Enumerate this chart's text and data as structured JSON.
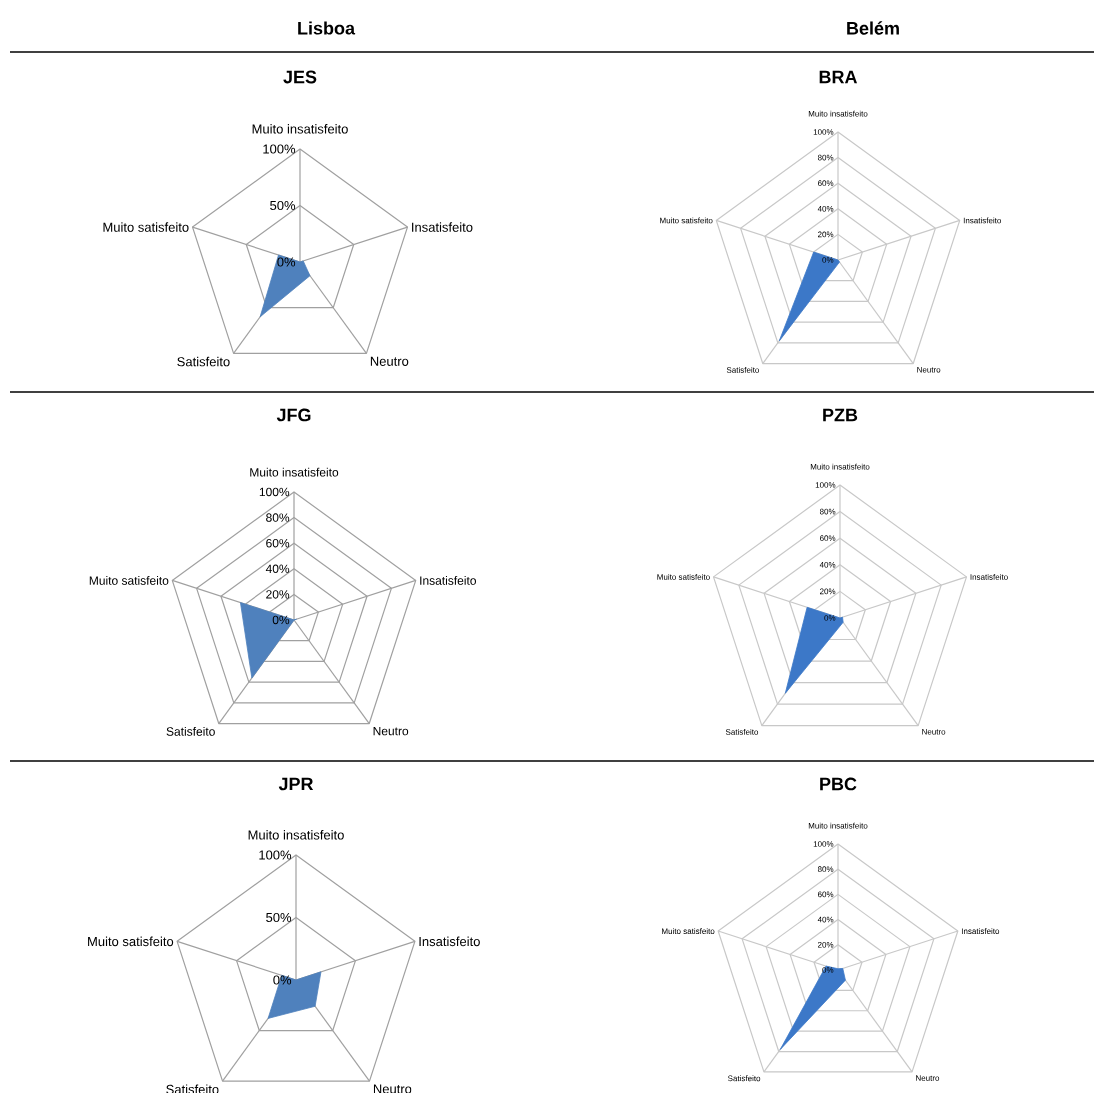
{
  "chart_data": [
    {
      "type": "radar",
      "title": "JES",
      "annotations": [
        "Lisboa"
      ],
      "categories": [
        "Muito insatisfeito",
        "Insatisfeito",
        "Neutro",
        "Satisfeito",
        "Muito satisfeito"
      ],
      "series": [
        {
          "color": "#4f81bd",
          "values": [
            0,
            3,
            15,
            60,
            20
          ]
        }
      ],
      "ylim": [
        0,
        100
      ],
      "yticks": [
        {
          "value": 0,
          "label": "0%"
        },
        {
          "value": 50,
          "label": "50%"
        },
        {
          "value": 100,
          "label": "100%"
        }
      ],
      "grid": true
    },
    {
      "type": "radar",
      "title": "BRA",
      "annotations": [
        "Belém"
      ],
      "categories": [
        "Muito insatisfeito",
        "Insatisfeito",
        "Neutro",
        "Satisfeito",
        "Muito satisfeito"
      ],
      "series": [
        {
          "color": "#3c78c8",
          "values": [
            0,
            0,
            2,
            78,
            20
          ]
        }
      ],
      "ylim": [
        0,
        100
      ],
      "yticks": [
        {
          "value": 0,
          "label": "0%"
        },
        {
          "value": 20,
          "label": "20%"
        },
        {
          "value": 40,
          "label": "40%"
        },
        {
          "value": 60,
          "label": "60%"
        },
        {
          "value": 80,
          "label": "80%"
        },
        {
          "value": 100,
          "label": "100%"
        }
      ],
      "grid": true
    },
    {
      "type": "radar",
      "title": "JFG",
      "categories": [
        "Muito insatisfeito",
        "Insatisfeito",
        "Neutro",
        "Satisfeito",
        "Muito satisfeito"
      ],
      "series": [
        {
          "color": "#4f81bd",
          "values": [
            0,
            2,
            0,
            56,
            44
          ]
        }
      ],
      "ylim": [
        0,
        100
      ],
      "yticks": [
        {
          "value": 0,
          "label": "0%"
        },
        {
          "value": 20,
          "label": "20%"
        },
        {
          "value": 40,
          "label": "40%"
        },
        {
          "value": 60,
          "label": "60%"
        },
        {
          "value": 80,
          "label": "80%"
        },
        {
          "value": 100,
          "label": "100%"
        }
      ],
      "grid": true
    },
    {
      "type": "radar",
      "title": "PZB",
      "categories": [
        "Muito insatisfeito",
        "Insatisfeito",
        "Neutro",
        "Satisfeito",
        "Muito satisfeito"
      ],
      "series": [
        {
          "color": "#3c78c8",
          "values": [
            0,
            2,
            4,
            70,
            26
          ]
        }
      ],
      "ylim": [
        0,
        100
      ],
      "yticks": [
        {
          "value": 0,
          "label": "0%"
        },
        {
          "value": 20,
          "label": "20%"
        },
        {
          "value": 40,
          "label": "40%"
        },
        {
          "value": 60,
          "label": "60%"
        },
        {
          "value": 80,
          "label": "80%"
        },
        {
          "value": 100,
          "label": "100%"
        }
      ],
      "grid": true
    },
    {
      "type": "radar",
      "title": "JPR",
      "categories": [
        "Muito insatisfeito",
        "Insatisfeito",
        "Neutro",
        "Satisfeito",
        "Muito satisfeito"
      ],
      "series": [
        {
          "color": "#4f81bd",
          "values": [
            0,
            21,
            26,
            38,
            12
          ]
        }
      ],
      "ylim": [
        0,
        100
      ],
      "yticks": [
        {
          "value": 0,
          "label": "0%"
        },
        {
          "value": 50,
          "label": "50%"
        },
        {
          "value": 100,
          "label": "100%"
        }
      ],
      "grid": true
    },
    {
      "type": "radar",
      "title": "PBC",
      "categories": [
        "Muito insatisfeito",
        "Insatisfeito",
        "Neutro",
        "Satisfeito",
        "Muito satisfeito"
      ],
      "series": [
        {
          "color": "#3c78c8",
          "values": [
            1,
            4,
            10,
            78,
            10
          ]
        }
      ],
      "ylim": [
        0,
        100
      ],
      "yticks": [
        {
          "value": 0,
          "label": "0%"
        },
        {
          "value": 20,
          "label": "20%"
        },
        {
          "value": 40,
          "label": "40%"
        },
        {
          "value": 60,
          "label": "60%"
        },
        {
          "value": 80,
          "label": "80%"
        },
        {
          "value": 100,
          "label": "100%"
        }
      ],
      "grid": true
    }
  ]
}
